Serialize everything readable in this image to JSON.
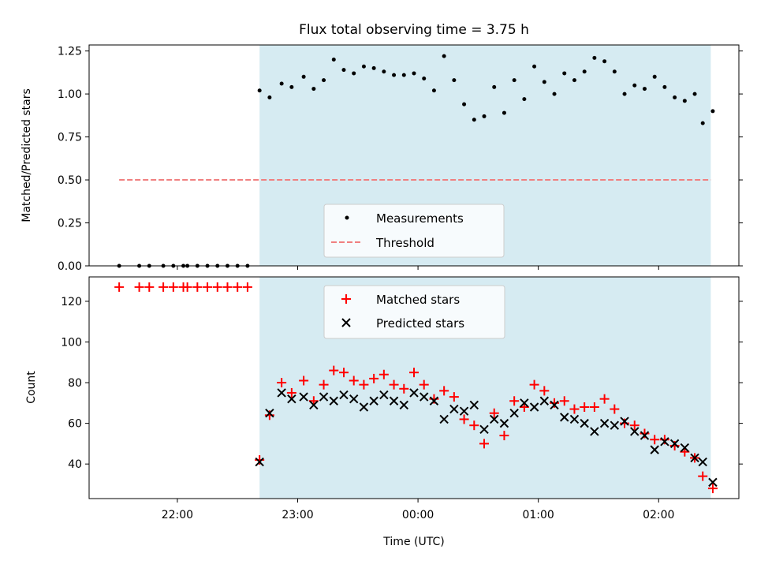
{
  "chart_data": [
    {
      "type": "scatter",
      "title": "Flux total observing time = 3.75 h",
      "xlabel": "",
      "ylabel": "Matched/Predicted stars",
      "ylim": [
        0,
        1.285
      ],
      "yticks": [
        "0.00",
        "0.25",
        "0.50",
        "0.75",
        "1.00",
        "1.25"
      ],
      "ytick_values": [
        0,
        0.25,
        0.5,
        0.75,
        1.0,
        1.25
      ],
      "shaded_span": [
        "22:41",
        "02:26"
      ],
      "threshold": {
        "value": 0.5,
        "x_start": "21:31",
        "x_end": "02:26",
        "color": "#f08080"
      },
      "legend_position": "lower-center",
      "series": [
        {
          "name": "Measurements",
          "color": "#000000",
          "points": [
            [
              "21:31",
              0
            ],
            [
              "21:41",
              0
            ],
            [
              "21:46",
              0
            ],
            [
              "21:53",
              0
            ],
            [
              "21:58",
              0
            ],
            [
              "22:03",
              0
            ],
            [
              "22:05",
              0
            ],
            [
              "22:10",
              0
            ],
            [
              "22:15",
              0
            ],
            [
              "22:20",
              0
            ],
            [
              "22:25",
              0
            ],
            [
              "22:30",
              0
            ],
            [
              "22:35",
              0
            ],
            [
              "22:41",
              1.02
            ],
            [
              "22:46",
              0.98
            ],
            [
              "22:52",
              1.06
            ],
            [
              "22:57",
              1.04
            ],
            [
              "23:03",
              1.1
            ],
            [
              "23:08",
              1.03
            ],
            [
              "23:13",
              1.08
            ],
            [
              "23:18",
              1.2
            ],
            [
              "23:23",
              1.14
            ],
            [
              "23:28",
              1.12
            ],
            [
              "23:33",
              1.16
            ],
            [
              "23:38",
              1.15
            ],
            [
              "23:43",
              1.13
            ],
            [
              "23:48",
              1.11
            ],
            [
              "23:53",
              1.11
            ],
            [
              "23:58",
              1.12
            ],
            [
              "00:03",
              1.09
            ],
            [
              "00:08",
              1.02
            ],
            [
              "00:13",
              1.22
            ],
            [
              "00:18",
              1.08
            ],
            [
              "00:23",
              0.94
            ],
            [
              "00:28",
              0.85
            ],
            [
              "00:33",
              0.87
            ],
            [
              "00:38",
              1.04
            ],
            [
              "00:43",
              0.89
            ],
            [
              "00:48",
              1.08
            ],
            [
              "00:53",
              0.97
            ],
            [
              "00:58",
              1.16
            ],
            [
              "01:03",
              1.07
            ],
            [
              "01:08",
              1.0
            ],
            [
              "01:13",
              1.12
            ],
            [
              "01:18",
              1.08
            ],
            [
              "01:23",
              1.13
            ],
            [
              "01:28",
              1.21
            ],
            [
              "01:33",
              1.19
            ],
            [
              "01:38",
              1.13
            ],
            [
              "01:43",
              1.0
            ],
            [
              "01:48",
              1.05
            ],
            [
              "01:53",
              1.03
            ],
            [
              "01:58",
              1.1
            ],
            [
              "02:03",
              1.04
            ],
            [
              "02:08",
              0.98
            ],
            [
              "02:13",
              0.96
            ],
            [
              "02:18",
              1.0
            ],
            [
              "02:22",
              0.83
            ],
            [
              "02:27",
              0.9
            ]
          ]
        },
        {
          "name": "Threshold",
          "color": "#f08080",
          "style": "dashed"
        }
      ]
    },
    {
      "type": "scatter",
      "title": "",
      "xlabel": "Time (UTC)",
      "ylabel": "Count",
      "ylim": [
        23,
        132
      ],
      "yticks": [
        "40",
        "60",
        "80",
        "100",
        "120"
      ],
      "ytick_values": [
        40,
        60,
        80,
        100,
        120
      ],
      "xlim": [
        "21:16",
        "02:40"
      ],
      "xticks": [
        "22:00",
        "23:00",
        "00:00",
        "01:00",
        "02:00"
      ],
      "shaded_span": [
        "22:41",
        "02:26"
      ],
      "legend_position": "upper-center",
      "series": [
        {
          "name": "Matched stars",
          "marker": "plus",
          "color": "#ff0000",
          "points": [
            [
              "21:31",
              127
            ],
            [
              "21:41",
              127
            ],
            [
              "21:46",
              127
            ],
            [
              "21:53",
              127
            ],
            [
              "21:58",
              127
            ],
            [
              "22:03",
              127
            ],
            [
              "22:05",
              127
            ],
            [
              "22:10",
              127
            ],
            [
              "22:15",
              127
            ],
            [
              "22:20",
              127
            ],
            [
              "22:25",
              127
            ],
            [
              "22:30",
              127
            ],
            [
              "22:35",
              127
            ],
            [
              "22:41",
              42
            ],
            [
              "22:46",
              64
            ],
            [
              "22:52",
              80
            ],
            [
              "22:57",
              75
            ],
            [
              "23:03",
              81
            ],
            [
              "23:08",
              71
            ],
            [
              "23:13",
              79
            ],
            [
              "23:18",
              86
            ],
            [
              "23:23",
              85
            ],
            [
              "23:28",
              81
            ],
            [
              "23:33",
              79
            ],
            [
              "23:38",
              82
            ],
            [
              "23:43",
              84
            ],
            [
              "23:48",
              79
            ],
            [
              "23:53",
              77
            ],
            [
              "23:58",
              85
            ],
            [
              "00:03",
              79
            ],
            [
              "00:08",
              72
            ],
            [
              "00:13",
              76
            ],
            [
              "00:18",
              73
            ],
            [
              "00:23",
              62
            ],
            [
              "00:28",
              59
            ],
            [
              "00:33",
              50
            ],
            [
              "00:38",
              65
            ],
            [
              "00:43",
              54
            ],
            [
              "00:48",
              71
            ],
            [
              "00:53",
              68
            ],
            [
              "00:58",
              79
            ],
            [
              "01:03",
              76
            ],
            [
              "01:08",
              70
            ],
            [
              "01:13",
              71
            ],
            [
              "01:18",
              67
            ],
            [
              "01:23",
              68
            ],
            [
              "01:28",
              68
            ],
            [
              "01:33",
              72
            ],
            [
              "01:38",
              67
            ],
            [
              "01:43",
              60
            ],
            [
              "01:48",
              59
            ],
            [
              "01:53",
              55
            ],
            [
              "01:58",
              52
            ],
            [
              "02:03",
              52
            ],
            [
              "02:08",
              49
            ],
            [
              "02:13",
              46
            ],
            [
              "02:18",
              43
            ],
            [
              "02:22",
              34
            ],
            [
              "02:27",
              28
            ]
          ]
        },
        {
          "name": "Predicted stars",
          "marker": "x",
          "color": "#000000",
          "points": [
            [
              "22:41",
              41
            ],
            [
              "22:46",
              65
            ],
            [
              "22:52",
              75
            ],
            [
              "22:57",
              72
            ],
            [
              "23:03",
              73
            ],
            [
              "23:08",
              69
            ],
            [
              "23:13",
              73
            ],
            [
              "23:18",
              71
            ],
            [
              "23:23",
              74
            ],
            [
              "23:28",
              72
            ],
            [
              "23:33",
              68
            ],
            [
              "23:38",
              71
            ],
            [
              "23:43",
              74
            ],
            [
              "23:48",
              71
            ],
            [
              "23:53",
              69
            ],
            [
              "23:58",
              75
            ],
            [
              "00:03",
              73
            ],
            [
              "00:08",
              71
            ],
            [
              "00:13",
              62
            ],
            [
              "00:18",
              67
            ],
            [
              "00:23",
              66
            ],
            [
              "00:28",
              69
            ],
            [
              "00:33",
              57
            ],
            [
              "00:38",
              62
            ],
            [
              "00:43",
              60
            ],
            [
              "00:48",
              65
            ],
            [
              "00:53",
              70
            ],
            [
              "00:58",
              68
            ],
            [
              "01:03",
              71
            ],
            [
              "01:08",
              69
            ],
            [
              "01:13",
              63
            ],
            [
              "01:18",
              62
            ],
            [
              "01:23",
              60
            ],
            [
              "01:28",
              56
            ],
            [
              "01:33",
              60
            ],
            [
              "01:38",
              59
            ],
            [
              "01:43",
              61
            ],
            [
              "01:48",
              56
            ],
            [
              "01:53",
              54
            ],
            [
              "01:58",
              47
            ],
            [
              "02:03",
              51
            ],
            [
              "02:08",
              50
            ],
            [
              "02:13",
              48
            ],
            [
              "02:18",
              43
            ],
            [
              "02:22",
              41
            ],
            [
              "02:27",
              31
            ]
          ]
        }
      ]
    }
  ]
}
